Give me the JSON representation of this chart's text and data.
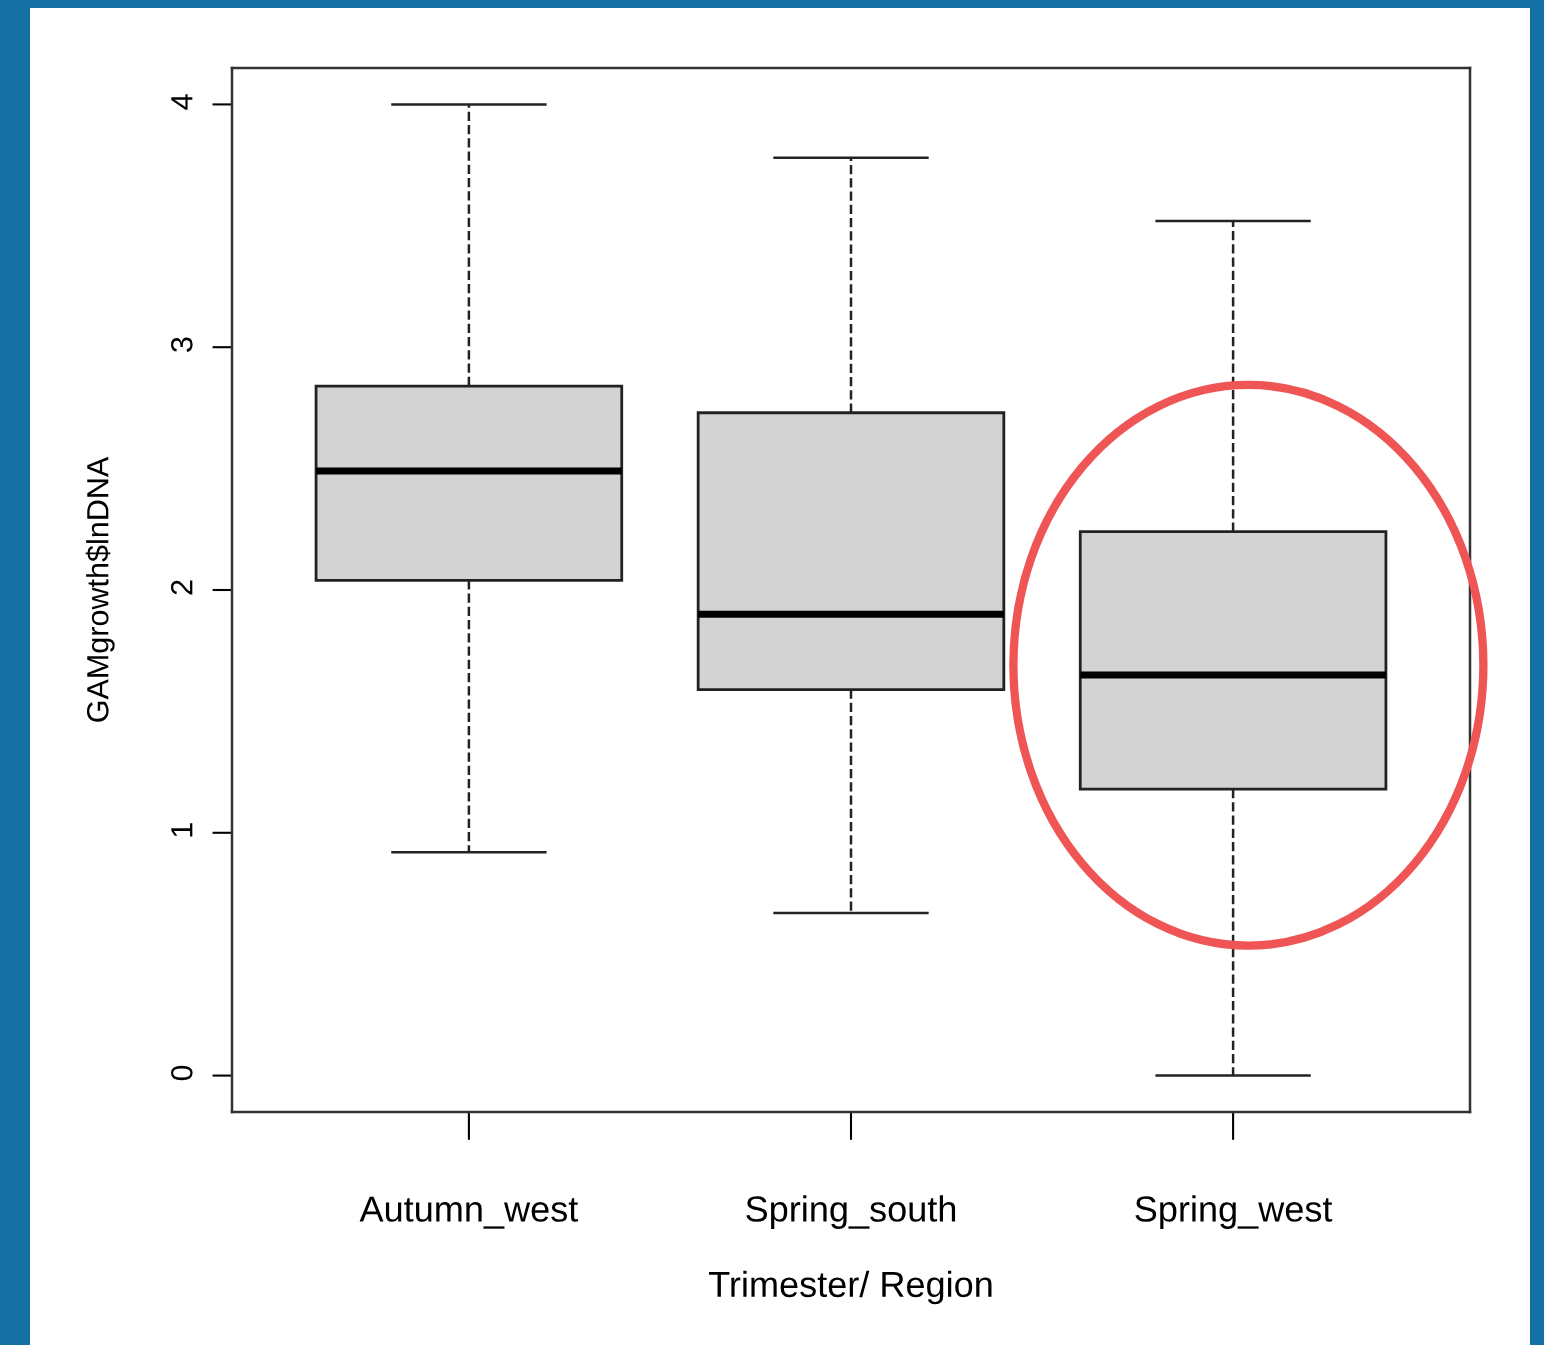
{
  "chart_data": {
    "type": "box",
    "xlabel": "Trimester/ Region",
    "ylabel": "GAMgrowth$lnDNA",
    "categories": [
      "Autumn_west",
      "Spring_south",
      "Spring_west"
    ],
    "boxes": [
      {
        "low": 0.92,
        "q1": 2.04,
        "median": 2.49,
        "q3": 2.84,
        "high": 4.0
      },
      {
        "low": 0.67,
        "q1": 1.59,
        "median": 1.9,
        "q3": 2.73,
        "high": 3.78
      },
      {
        "low": 0.0,
        "q1": 1.18,
        "median": 1.65,
        "q3": 2.24,
        "high": 3.52
      }
    ],
    "color": "#d3d3d3",
    "ylim": [
      -0.15,
      4.15
    ],
    "yticks": [
      0,
      1,
      2,
      3,
      4
    ],
    "grid": false,
    "line_style": "dashed"
  }
}
